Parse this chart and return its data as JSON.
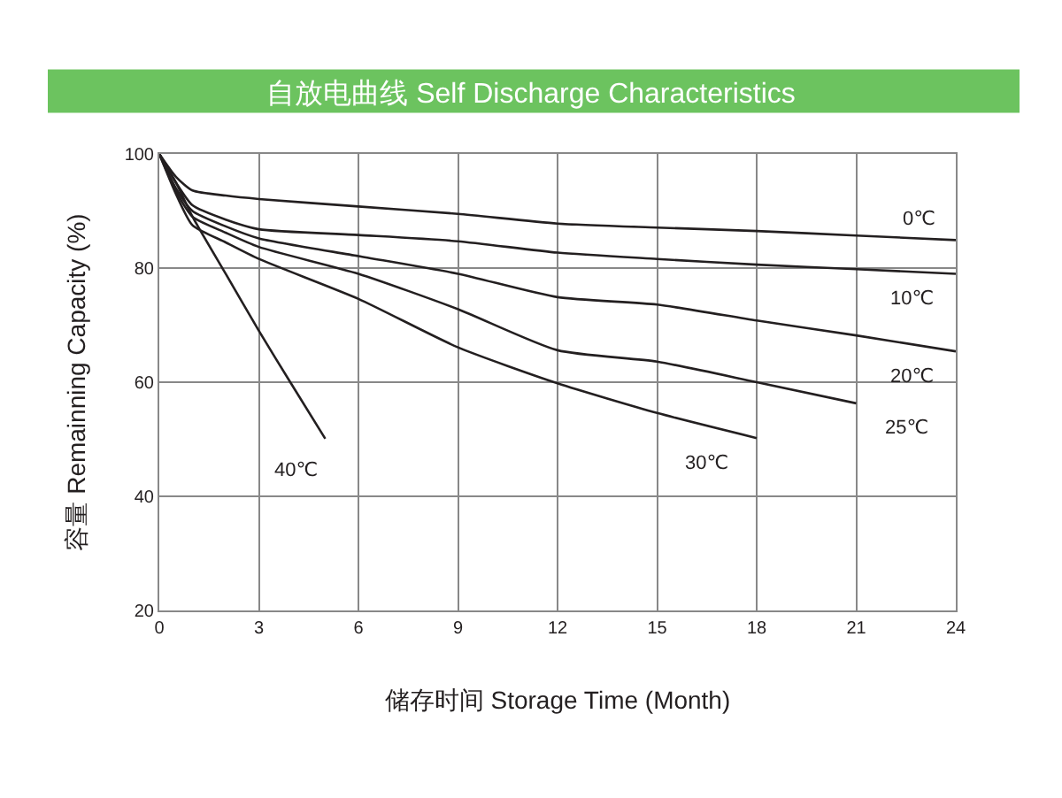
{
  "chart_data": {
    "type": "line",
    "title": "自放电曲线 Self Discharge Characteristics",
    "xlabel": "储存时间 Storage Time (Month)",
    "ylabel": "容量 Remainning Capacity (%)",
    "xlim": [
      0,
      24
    ],
    "xticks": [
      0,
      3,
      6,
      9,
      12,
      15,
      18,
      21,
      24
    ],
    "ylim": [
      20,
      100
    ],
    "yticks": [
      20,
      40,
      60,
      80,
      100
    ],
    "grid": true,
    "legend": false,
    "marker": "none",
    "line_style": "solid",
    "series": [
      {
        "name": "0℃",
        "color": "#231f20",
        "x": [
          0,
          0.5,
          1,
          2,
          3,
          6,
          9,
          12,
          15,
          18,
          21,
          24
        ],
        "values": [
          100,
          96,
          93.6,
          92.7,
          92.1,
          90.8,
          89.5,
          87.8,
          87.1,
          86.5,
          85.7,
          84.9
        ]
      },
      {
        "name": "10℃",
        "color": "#231f20",
        "x": [
          0,
          0.5,
          1,
          2,
          3,
          6,
          9,
          12,
          15,
          18,
          21,
          24
        ],
        "values": [
          100,
          95,
          91,
          88.5,
          86.8,
          85.8,
          84.7,
          82.7,
          81.6,
          80.6,
          79.8,
          79
        ]
      },
      {
        "name": "20℃",
        "color": "#231f20",
        "x": [
          0,
          0.5,
          1,
          2,
          3,
          6,
          9,
          12,
          15,
          18,
          21,
          24
        ],
        "values": [
          100,
          94,
          90,
          87.3,
          85.2,
          82.1,
          79,
          74.9,
          73.6,
          70.8,
          68.2,
          65.4
        ]
      },
      {
        "name": "25℃",
        "color": "#231f20",
        "x": [
          0,
          0.5,
          1,
          2,
          3,
          6,
          9,
          12,
          15,
          18,
          21
        ],
        "values": [
          100,
          93.5,
          89,
          86.2,
          83.7,
          79,
          72.8,
          65.6,
          63.6,
          60,
          56.3
        ]
      },
      {
        "name": "30℃",
        "color": "#231f20",
        "x": [
          0,
          0.5,
          1,
          2,
          3,
          6,
          9,
          12,
          15,
          18
        ],
        "values": [
          100,
          93,
          87.5,
          84.5,
          81.6,
          74.6,
          66.1,
          59.8,
          54.6,
          50.2
        ]
      },
      {
        "name": "40℃",
        "color": "#231f20",
        "x": [
          0,
          0.5,
          1,
          2,
          3,
          4,
          5
        ],
        "values": [
          100,
          95,
          89,
          79,
          69,
          59.5,
          50.1
        ]
      }
    ]
  }
}
